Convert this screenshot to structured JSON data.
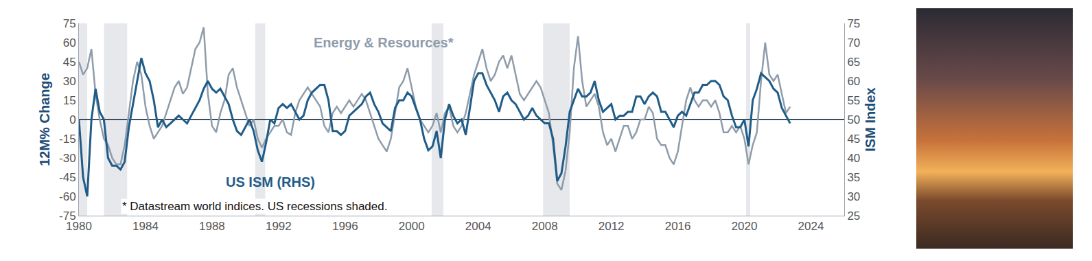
{
  "chart_data": {
    "type": "line",
    "x": [
      1980,
      1980.25,
      1980.5,
      1980.75,
      1981,
      1981.25,
      1981.5,
      1981.75,
      1982,
      1982.25,
      1982.5,
      1982.75,
      1983,
      1983.25,
      1983.5,
      1983.75,
      1984,
      1984.25,
      1984.5,
      1984.75,
      1985,
      1985.25,
      1985.5,
      1985.75,
      1986,
      1986.25,
      1986.5,
      1986.75,
      1987,
      1987.25,
      1987.5,
      1987.75,
      1988,
      1988.25,
      1988.5,
      1988.75,
      1989,
      1989.25,
      1989.5,
      1989.75,
      1990,
      1990.25,
      1990.5,
      1990.75,
      1991,
      1991.25,
      1991.5,
      1991.75,
      1992,
      1992.25,
      1992.5,
      1992.75,
      1993,
      1993.25,
      1993.5,
      1993.75,
      1994,
      1994.25,
      1994.5,
      1994.75,
      1995,
      1995.25,
      1995.5,
      1995.75,
      1996,
      1996.25,
      1996.5,
      1996.75,
      1997,
      1997.25,
      1997.5,
      1997.75,
      1998,
      1998.25,
      1998.5,
      1998.75,
      1999,
      1999.25,
      1999.5,
      1999.75,
      2000,
      2000.25,
      2000.5,
      2000.75,
      2001,
      2001.25,
      2001.5,
      2001.75,
      2002,
      2002.25,
      2002.5,
      2002.75,
      2003,
      2003.25,
      2003.5,
      2003.75,
      2004,
      2004.25,
      2004.5,
      2004.75,
      2005,
      2005.25,
      2005.5,
      2005.75,
      2006,
      2006.25,
      2006.5,
      2006.75,
      2007,
      2007.25,
      2007.5,
      2007.75,
      2008,
      2008.25,
      2008.5,
      2008.75,
      2009,
      2009.25,
      2009.5,
      2009.75,
      2010,
      2010.25,
      2010.5,
      2010.75,
      2011,
      2011.25,
      2011.5,
      2011.75,
      2012,
      2012.25,
      2012.5,
      2012.75,
      2013,
      2013.25,
      2013.5,
      2013.75,
      2014,
      2014.25,
      2014.5,
      2014.75,
      2015,
      2015.25,
      2015.5,
      2015.75,
      2016,
      2016.25,
      2016.5,
      2016.75,
      2017,
      2017.25,
      2017.5,
      2017.75,
      2018,
      2018.25,
      2018.5,
      2018.75,
      2019,
      2019.25,
      2019.5,
      2019.75,
      2020,
      2020.25,
      2020.5,
      2020.75,
      2021,
      2021.25,
      2021.5,
      2021.75,
      2022,
      2022.25,
      2022.5,
      2022.75
    ],
    "xlim": [
      1980,
      2026
    ],
    "xticks": [
      1980,
      1984,
      1988,
      1992,
      1996,
      2000,
      2004,
      2008,
      2012,
      2016,
      2020,
      2024
    ],
    "ylim": [
      -75,
      75
    ],
    "yticks": [
      -75,
      -60,
      -45,
      -30,
      -15,
      0,
      15,
      30,
      45,
      60,
      75
    ],
    "y2lim": [
      25,
      75
    ],
    "y2ticks": [
      25,
      30,
      35,
      40,
      45,
      50,
      55,
      60,
      65,
      70,
      75
    ],
    "y_label": "12M% Change",
    "y2_label": "ISM Index",
    "grid": false,
    "series": [
      {
        "name": "Energy & Resources*",
        "color": "#8e9cab",
        "axis": "y",
        "label_position": [
          1998.3,
          60
        ],
        "values": [
          45,
          35,
          40,
          55,
          20,
          0,
          -15,
          -20,
          -30,
          -35,
          -35,
          -20,
          5,
          30,
          45,
          35,
          10,
          -5,
          -15,
          -10,
          -5,
          5,
          15,
          25,
          30,
          20,
          25,
          40,
          55,
          60,
          72,
          20,
          -5,
          -10,
          5,
          15,
          35,
          40,
          25,
          15,
          5,
          -5,
          0,
          -15,
          -22,
          -15,
          -10,
          -5,
          -5,
          0,
          -10,
          -12,
          5,
          15,
          20,
          25,
          20,
          15,
          10,
          -5,
          -10,
          5,
          10,
          5,
          10,
          15,
          10,
          15,
          20,
          15,
          5,
          -5,
          -15,
          -20,
          -25,
          -15,
          5,
          25,
          30,
          40,
          25,
          10,
          0,
          -5,
          -10,
          -5,
          5,
          -10,
          5,
          10,
          -5,
          -10,
          -5,
          5,
          20,
          35,
          45,
          55,
          40,
          30,
          35,
          45,
          50,
          40,
          50,
          35,
          20,
          15,
          20,
          25,
          30,
          25,
          15,
          5,
          -20,
          -50,
          -55,
          -40,
          -10,
          40,
          65,
          30,
          10,
          15,
          20,
          10,
          -10,
          -20,
          -15,
          -25,
          -15,
          -5,
          -5,
          -15,
          -10,
          0,
          0,
          10,
          5,
          -15,
          -20,
          -20,
          -30,
          -35,
          -25,
          -5,
          15,
          25,
          15,
          10,
          15,
          15,
          10,
          15,
          5,
          -10,
          -10,
          -5,
          -10,
          -5,
          -15,
          -35,
          -20,
          -10,
          30,
          60,
          35,
          30,
          35,
          20,
          5,
          10
        ]
      },
      {
        "name": "US ISM (RHS)",
        "color": "#1f5c88",
        "axis": "y2",
        "label_position": [
          1991.5,
          33.75
        ],
        "values": [
          50,
          35,
          30,
          50,
          58,
          52,
          50,
          40,
          38,
          38,
          37,
          39,
          48,
          54,
          60,
          66,
          62,
          60,
          55,
          48,
          50,
          48,
          49,
          50,
          51,
          50,
          49,
          51,
          53,
          55,
          58,
          60,
          58,
          57,
          58,
          56,
          54,
          50,
          47,
          46,
          48,
          50,
          47,
          42,
          39,
          44,
          50,
          49,
          53,
          54,
          53,
          54,
          52,
          50,
          51,
          55,
          57,
          58,
          59,
          59,
          55,
          47,
          47,
          46,
          47,
          51,
          52,
          53,
          54,
          56,
          57,
          54,
          52,
          49,
          48,
          47,
          53,
          55,
          55,
          57,
          56,
          53,
          50,
          45,
          42,
          43,
          47,
          40,
          50,
          54,
          51,
          49,
          50,
          46,
          53,
          60,
          62,
          62,
          59,
          57,
          55,
          52,
          56,
          57,
          55,
          54,
          52,
          50,
          51,
          53,
          51,
          50,
          49,
          49,
          45,
          34,
          36,
          43,
          52,
          55,
          58,
          56,
          56,
          57,
          60,
          55,
          52,
          53,
          54,
          50,
          51,
          51,
          52,
          52,
          56,
          56,
          54,
          56,
          57,
          56,
          52,
          52,
          50,
          48,
          51,
          52,
          51,
          54,
          57,
          57,
          59,
          59,
          60,
          60,
          59,
          56,
          55,
          51,
          48,
          48,
          50,
          43,
          55,
          58,
          62,
          61,
          60,
          58,
          57,
          53,
          51,
          49
        ]
      }
    ],
    "recessions": [
      [
        1980.0,
        1980.5
      ],
      [
        1981.5,
        1982.9
      ],
      [
        1990.6,
        1991.2
      ],
      [
        2001.2,
        2001.9
      ],
      [
        2007.9,
        2009.5
      ],
      [
        2020.1,
        2020.35
      ]
    ],
    "annotations": [
      {
        "text": "* Datastream world indices. US recessions shaded.",
        "x": 1982.5,
        "y": -67.5
      }
    ]
  }
}
